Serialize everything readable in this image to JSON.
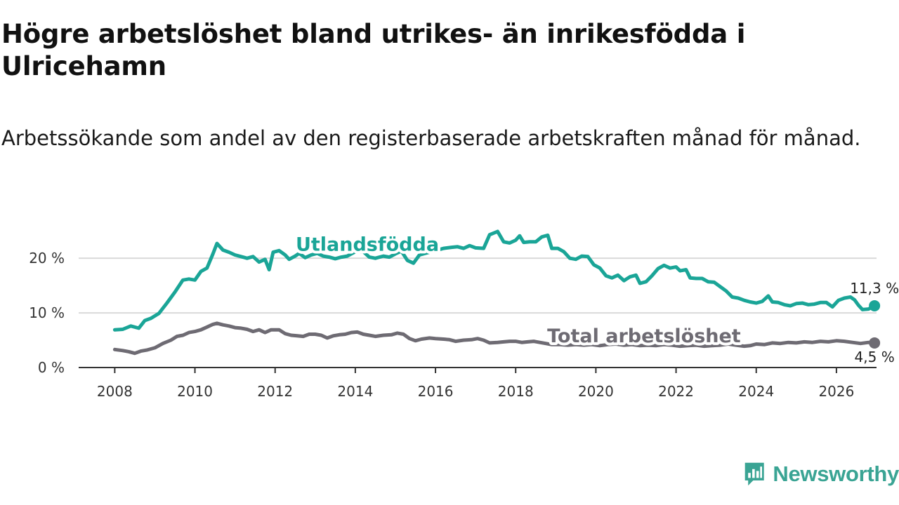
{
  "header": {
    "title": "Högre arbetslöshet bland utrikes- än inrikesfödda i Ulricehamn",
    "subtitle": "Arbetssökande som andel av den registerbaserade arbetskraften månad för månad."
  },
  "colors": {
    "foreign_born": "#1aa597",
    "total": "#6e6b73",
    "grid": "#d9d9d9",
    "axis": "#333333",
    "brand": "#3aa494"
  },
  "brand": {
    "name": "Newsworthy",
    "icon": "bar-chart-bubble-icon"
  },
  "chart_data": {
    "type": "line",
    "title": "Högre arbetslöshet bland utrikes- än inrikesfödda i Ulricehamn",
    "subtitle": "Arbetssökande som andel av den registerbaserade arbetskraften månad för månad.",
    "xlabel": "",
    "ylabel": "",
    "xlim": [
      2007.1,
      2027.0
    ],
    "ylim": [
      0,
      24
    ],
    "x_ticks": [
      2008,
      2010,
      2012,
      2014,
      2016,
      2018,
      2020,
      2022,
      2024,
      2026
    ],
    "x_tick_labels": [
      "2008",
      "2010",
      "2012",
      "2014",
      "2016",
      "2018",
      "2020",
      "2022",
      "2024",
      "2026"
    ],
    "y_ticks": [
      0,
      10,
      20
    ],
    "y_tick_labels": [
      "0 %",
      "10 %",
      "20 %"
    ],
    "grid": true,
    "series": [
      {
        "name": "Utlandsfödda",
        "end_label": "11,3 %",
        "points": [
          [
            2008.0,
            6.9
          ],
          [
            2008.2,
            7.0
          ],
          [
            2008.4,
            7.6
          ],
          [
            2008.6,
            7.2
          ],
          [
            2008.75,
            8.6
          ],
          [
            2008.9,
            9.0
          ],
          [
            2009.1,
            9.9
          ],
          [
            2009.3,
            11.8
          ],
          [
            2009.5,
            13.8
          ],
          [
            2009.7,
            16.0
          ],
          [
            2009.85,
            16.2
          ],
          [
            2010.0,
            16.0
          ],
          [
            2010.15,
            17.6
          ],
          [
            2010.3,
            18.2
          ],
          [
            2010.45,
            20.8
          ],
          [
            2010.55,
            22.7
          ],
          [
            2010.7,
            21.5
          ],
          [
            2010.85,
            21.1
          ],
          [
            2011.0,
            20.6
          ],
          [
            2011.15,
            20.3
          ],
          [
            2011.3,
            20.0
          ],
          [
            2011.45,
            20.3
          ],
          [
            2011.6,
            19.3
          ],
          [
            2011.75,
            19.8
          ],
          [
            2011.85,
            17.9
          ],
          [
            2011.95,
            21.1
          ],
          [
            2012.1,
            21.4
          ],
          [
            2012.25,
            20.6
          ],
          [
            2012.35,
            19.8
          ],
          [
            2012.5,
            20.4
          ],
          [
            2012.6,
            20.9
          ],
          [
            2012.75,
            20.1
          ],
          [
            2012.9,
            20.6
          ],
          [
            2013.05,
            20.9
          ],
          [
            2013.2,
            20.4
          ],
          [
            2013.35,
            20.2
          ],
          [
            2013.5,
            19.9
          ],
          [
            2013.65,
            20.2
          ],
          [
            2013.8,
            20.4
          ],
          [
            2014.0,
            21.2
          ],
          [
            2014.2,
            21.2
          ],
          [
            2014.35,
            20.2
          ],
          [
            2014.5,
            20.0
          ],
          [
            2014.7,
            20.4
          ],
          [
            2014.85,
            20.2
          ],
          [
            2015.0,
            20.8
          ],
          [
            2015.15,
            21.3
          ],
          [
            2015.3,
            19.6
          ],
          [
            2015.45,
            19.1
          ],
          [
            2015.6,
            20.6
          ],
          [
            2015.8,
            21.0
          ],
          [
            2016.0,
            21.4
          ],
          [
            2016.2,
            21.8
          ],
          [
            2016.4,
            22.0
          ],
          [
            2016.55,
            22.1
          ],
          [
            2016.7,
            21.8
          ],
          [
            2016.85,
            22.3
          ],
          [
            2017.0,
            21.9
          ],
          [
            2017.2,
            21.8
          ],
          [
            2017.35,
            24.3
          ],
          [
            2017.55,
            24.9
          ],
          [
            2017.7,
            23.0
          ],
          [
            2017.85,
            22.8
          ],
          [
            2018.0,
            23.3
          ],
          [
            2018.1,
            24.1
          ],
          [
            2018.2,
            22.9
          ],
          [
            2018.35,
            23.0
          ],
          [
            2018.5,
            23.0
          ],
          [
            2018.65,
            23.9
          ],
          [
            2018.8,
            24.2
          ],
          [
            2018.9,
            21.8
          ],
          [
            2019.05,
            21.8
          ],
          [
            2019.2,
            21.2
          ],
          [
            2019.35,
            20.0
          ],
          [
            2019.5,
            19.8
          ],
          [
            2019.65,
            20.4
          ],
          [
            2019.8,
            20.3
          ],
          [
            2019.95,
            18.8
          ],
          [
            2020.1,
            18.2
          ],
          [
            2020.25,
            16.8
          ],
          [
            2020.4,
            16.4
          ],
          [
            2020.55,
            16.9
          ],
          [
            2020.7,
            15.9
          ],
          [
            2020.85,
            16.6
          ],
          [
            2021.0,
            16.9
          ],
          [
            2021.1,
            15.4
          ],
          [
            2021.25,
            15.7
          ],
          [
            2021.4,
            16.8
          ],
          [
            2021.55,
            18.1
          ],
          [
            2021.7,
            18.7
          ],
          [
            2021.85,
            18.2
          ],
          [
            2022.0,
            18.4
          ],
          [
            2022.1,
            17.7
          ],
          [
            2022.25,
            17.9
          ],
          [
            2022.35,
            16.4
          ],
          [
            2022.5,
            16.3
          ],
          [
            2022.65,
            16.3
          ],
          [
            2022.8,
            15.7
          ],
          [
            2022.95,
            15.6
          ],
          [
            2023.1,
            14.8
          ],
          [
            2023.25,
            14.0
          ],
          [
            2023.4,
            12.9
          ],
          [
            2023.55,
            12.7
          ],
          [
            2023.7,
            12.3
          ],
          [
            2023.85,
            12.0
          ],
          [
            2024.0,
            11.8
          ],
          [
            2024.15,
            12.1
          ],
          [
            2024.3,
            13.1
          ],
          [
            2024.4,
            12.0
          ],
          [
            2024.55,
            11.9
          ],
          [
            2024.7,
            11.5
          ],
          [
            2024.85,
            11.3
          ],
          [
            2025.0,
            11.7
          ],
          [
            2025.15,
            11.8
          ],
          [
            2025.3,
            11.5
          ],
          [
            2025.45,
            11.6
          ],
          [
            2025.6,
            11.9
          ],
          [
            2025.75,
            11.9
          ],
          [
            2025.9,
            11.1
          ],
          [
            2026.05,
            12.3
          ],
          [
            2026.2,
            12.7
          ],
          [
            2026.35,
            12.9
          ],
          [
            2026.45,
            12.4
          ],
          [
            2026.55,
            11.4
          ],
          [
            2026.65,
            10.6
          ],
          [
            2026.8,
            10.7
          ],
          [
            2026.95,
            11.3
          ]
        ]
      },
      {
        "name": "Total arbetslöshet",
        "end_label": "4,5 %",
        "points": [
          [
            2008.0,
            3.3
          ],
          [
            2008.2,
            3.1
          ],
          [
            2008.35,
            2.9
          ],
          [
            2008.5,
            2.6
          ],
          [
            2008.65,
            3.0
          ],
          [
            2008.8,
            3.2
          ],
          [
            2009.0,
            3.6
          ],
          [
            2009.2,
            4.4
          ],
          [
            2009.4,
            5.0
          ],
          [
            2009.55,
            5.7
          ],
          [
            2009.7,
            5.9
          ],
          [
            2009.85,
            6.4
          ],
          [
            2010.0,
            6.6
          ],
          [
            2010.15,
            6.9
          ],
          [
            2010.3,
            7.4
          ],
          [
            2010.45,
            7.9
          ],
          [
            2010.55,
            8.1
          ],
          [
            2010.7,
            7.8
          ],
          [
            2010.85,
            7.6
          ],
          [
            2011.0,
            7.3
          ],
          [
            2011.15,
            7.2
          ],
          [
            2011.3,
            7.0
          ],
          [
            2011.45,
            6.6
          ],
          [
            2011.6,
            6.9
          ],
          [
            2011.75,
            6.4
          ],
          [
            2011.9,
            6.9
          ],
          [
            2012.1,
            6.9
          ],
          [
            2012.25,
            6.2
          ],
          [
            2012.4,
            5.9
          ],
          [
            2012.55,
            5.8
          ],
          [
            2012.7,
            5.7
          ],
          [
            2012.85,
            6.1
          ],
          [
            2013.0,
            6.1
          ],
          [
            2013.15,
            5.9
          ],
          [
            2013.3,
            5.4
          ],
          [
            2013.45,
            5.8
          ],
          [
            2013.6,
            6.0
          ],
          [
            2013.75,
            6.1
          ],
          [
            2013.9,
            6.4
          ],
          [
            2014.05,
            6.5
          ],
          [
            2014.2,
            6.1
          ],
          [
            2014.35,
            5.9
          ],
          [
            2014.5,
            5.7
          ],
          [
            2014.7,
            5.9
          ],
          [
            2014.9,
            6.0
          ],
          [
            2015.05,
            6.3
          ],
          [
            2015.2,
            6.1
          ],
          [
            2015.35,
            5.3
          ],
          [
            2015.5,
            4.9
          ],
          [
            2015.65,
            5.2
          ],
          [
            2015.85,
            5.4
          ],
          [
            2016.0,
            5.3
          ],
          [
            2016.2,
            5.2
          ],
          [
            2016.35,
            5.1
          ],
          [
            2016.5,
            4.8
          ],
          [
            2016.7,
            5.0
          ],
          [
            2016.9,
            5.1
          ],
          [
            2017.05,
            5.3
          ],
          [
            2017.2,
            5.0
          ],
          [
            2017.35,
            4.5
          ],
          [
            2017.55,
            4.6
          ],
          [
            2017.7,
            4.7
          ],
          [
            2017.85,
            4.8
          ],
          [
            2018.0,
            4.8
          ],
          [
            2018.15,
            4.6
          ],
          [
            2018.3,
            4.7
          ],
          [
            2018.45,
            4.8
          ],
          [
            2018.6,
            4.6
          ],
          [
            2018.75,
            4.4
          ],
          [
            2018.9,
            4.2
          ],
          [
            2019.1,
            4.2
          ],
          [
            2019.3,
            4.1
          ],
          [
            2019.5,
            4.2
          ],
          [
            2019.7,
            4.1
          ],
          [
            2019.9,
            4.2
          ],
          [
            2020.1,
            4.0
          ],
          [
            2020.3,
            4.2
          ],
          [
            2020.5,
            4.3
          ],
          [
            2020.7,
            4.1
          ],
          [
            2020.9,
            4.2
          ],
          [
            2021.1,
            4.0
          ],
          [
            2021.3,
            4.1
          ],
          [
            2021.5,
            4.0
          ],
          [
            2021.7,
            4.2
          ],
          [
            2021.9,
            4.1
          ],
          [
            2022.1,
            3.9
          ],
          [
            2022.3,
            4.0
          ],
          [
            2022.5,
            4.1
          ],
          [
            2022.7,
            3.9
          ],
          [
            2022.9,
            4.0
          ],
          [
            2023.1,
            4.1
          ],
          [
            2023.3,
            4.3
          ],
          [
            2023.5,
            4.1
          ],
          [
            2023.7,
            3.9
          ],
          [
            2023.85,
            4.0
          ],
          [
            2024.0,
            4.3
          ],
          [
            2024.2,
            4.2
          ],
          [
            2024.4,
            4.5
          ],
          [
            2024.6,
            4.4
          ],
          [
            2024.8,
            4.6
          ],
          [
            2025.0,
            4.5
          ],
          [
            2025.2,
            4.7
          ],
          [
            2025.4,
            4.6
          ],
          [
            2025.6,
            4.8
          ],
          [
            2025.8,
            4.7
          ],
          [
            2026.0,
            4.9
          ],
          [
            2026.2,
            4.8
          ],
          [
            2026.4,
            4.6
          ],
          [
            2026.6,
            4.4
          ],
          [
            2026.8,
            4.6
          ],
          [
            2026.95,
            4.5
          ]
        ]
      }
    ]
  }
}
